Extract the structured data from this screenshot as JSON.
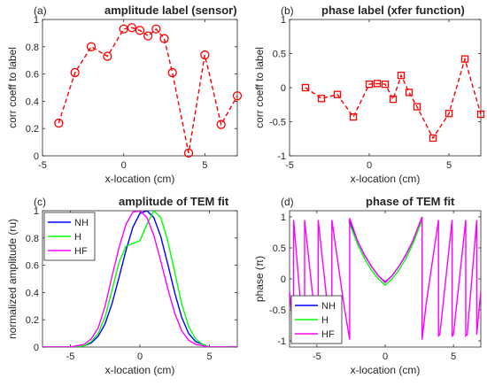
{
  "chart_data": [
    {
      "panel": "a",
      "type": "line",
      "panel_label": "(a)",
      "title": "amplitude label (sensor)",
      "xlabel": "x-location (cm)",
      "ylabel": "corr coeff to label",
      "xlim": [
        -5,
        7
      ],
      "ylim": [
        0,
        1
      ],
      "xticks": [
        "-5",
        "0",
        "5"
      ],
      "yticks": [
        "0",
        "0.2",
        "0.4",
        "0.6",
        "0.8",
        "1"
      ],
      "grid": false,
      "marker": "circle",
      "line_style": "dashed",
      "color": "#ff0000",
      "x": [
        -4,
        -3,
        -2,
        -1,
        0,
        0.5,
        1,
        1.5,
        2,
        2.5,
        3,
        4,
        5,
        6,
        7
      ],
      "y": [
        0.24,
        0.61,
        0.8,
        0.73,
        0.93,
        0.94,
        0.92,
        0.88,
        0.93,
        0.86,
        0.61,
        0.02,
        0.74,
        0.23,
        0.44
      ]
    },
    {
      "panel": "b",
      "type": "line",
      "panel_label": "(b)",
      "title": "phase label (xfer function)",
      "xlabel": "x-location (cm)",
      "ylabel": "corr coeff to label",
      "xlim": [
        -5,
        7
      ],
      "ylim": [
        -1,
        1
      ],
      "xticks": [
        "-5",
        "0",
        "5"
      ],
      "yticks": [
        "-1",
        "-0.5",
        "0",
        "0.5",
        "1"
      ],
      "grid": false,
      "marker": "square",
      "line_style": "dashed",
      "color": "#ff0000",
      "x": [
        -4,
        -3,
        -2,
        -1,
        0,
        0.5,
        1,
        1.5,
        2,
        2.5,
        3,
        4,
        5,
        6,
        7
      ],
      "y": [
        0.0,
        -0.16,
        -0.1,
        -0.43,
        0.05,
        0.06,
        0.05,
        -0.17,
        0.18,
        -0.07,
        -0.28,
        -0.74,
        -0.38,
        0.42,
        -0.39
      ]
    },
    {
      "panel": "c",
      "type": "line",
      "panel_label": "(c)",
      "title": "amplitude of TEM fit",
      "xlabel": "x-location (cm)",
      "ylabel": "normalized amplitude (ru)",
      "xlim": [
        -7,
        7
      ],
      "ylim": [
        0,
        1
      ],
      "xticks": [
        "-5",
        "0",
        "5"
      ],
      "yticks": [
        "0",
        "0.2",
        "0.4",
        "0.6",
        "0.8",
        "1"
      ],
      "grid": false,
      "legend_position": "top-left",
      "series": [
        {
          "name": "NH",
          "color": "#0000ff",
          "x": [
            -7,
            -6,
            -5,
            -4.5,
            -4,
            -3.5,
            -3,
            -2.5,
            -2,
            -1.5,
            -1,
            -0.5,
            0,
            0.5,
            1,
            1.5,
            2,
            2.5,
            3,
            3.5,
            4,
            5,
            6,
            7
          ],
          "y": [
            0,
            0,
            0,
            0,
            0.01,
            0.03,
            0.08,
            0.17,
            0.32,
            0.51,
            0.71,
            0.88,
            0.98,
            1.0,
            0.95,
            0.81,
            0.61,
            0.4,
            0.22,
            0.1,
            0.04,
            0,
            0,
            0
          ]
        },
        {
          "name": "H",
          "color": "#00ff00",
          "x": [
            -7,
            -6,
            -5,
            -4.5,
            -4,
            -3.5,
            -3,
            -2.5,
            -2,
            -1.5,
            -1,
            -0.5,
            0,
            0.5,
            1,
            1.5,
            2,
            2.5,
            3,
            3.5,
            4,
            4.5,
            5,
            6,
            7
          ],
          "y": [
            0,
            0,
            0,
            0,
            0.01,
            0.04,
            0.1,
            0.22,
            0.42,
            0.62,
            0.74,
            0.76,
            0.78,
            0.9,
            1.0,
            0.95,
            0.78,
            0.55,
            0.32,
            0.15,
            0.06,
            0.02,
            0,
            0,
            0
          ]
        },
        {
          "name": "HF",
          "color": "#ff00ff",
          "x": [
            -7,
            -6,
            -5,
            -4.5,
            -4,
            -3.5,
            -3,
            -2.5,
            -2,
            -1.5,
            -1,
            -0.5,
            0,
            0.5,
            1,
            1.5,
            2,
            2.5,
            3,
            3.5,
            4,
            5,
            6,
            7
          ],
          "y": [
            0,
            0,
            0,
            0.01,
            0.02,
            0.06,
            0.14,
            0.3,
            0.52,
            0.73,
            0.9,
            0.99,
            1.0,
            0.95,
            0.82,
            0.63,
            0.43,
            0.25,
            0.12,
            0.05,
            0.02,
            0,
            0,
            0
          ]
        }
      ]
    },
    {
      "panel": "d",
      "type": "line",
      "panel_label": "(d)",
      "title": "phase of TEM fit",
      "xlabel": "x-location (cm)",
      "ylabel": "phase (π)",
      "xlim": [
        -7,
        7
      ],
      "ylim": [
        -1.1,
        1.1
      ],
      "xticks": [
        "-5",
        "0",
        "5"
      ],
      "yticks": [
        "-1",
        "-0.5",
        "0",
        "0.5",
        "1"
      ],
      "grid": false,
      "legend_position": "bottom-left",
      "series": [
        {
          "name": "NH",
          "color": "#0000ff",
          "x": [
            -2.65,
            -2.0,
            -1.5,
            -1.0,
            -0.5,
            0,
            0.5,
            1.0,
            1.5,
            2.0,
            2.7
          ],
          "y": [
            0.95,
            0.6,
            0.38,
            0.2,
            0.05,
            -0.05,
            0.05,
            0.2,
            0.38,
            0.6,
            1.0
          ]
        },
        {
          "name": "H",
          "color": "#00ff00",
          "x": [
            -2.65,
            -2.0,
            -1.5,
            -1.0,
            -0.5,
            0,
            0.5,
            1.0,
            1.5,
            2.0,
            2.7
          ],
          "y": [
            0.92,
            0.55,
            0.32,
            0.14,
            0.0,
            -0.1,
            0.0,
            0.14,
            0.32,
            0.55,
            0.95
          ]
        },
        {
          "name": "HF",
          "color": "#ff00ff",
          "x": [
            -7,
            -6.7,
            -6.7,
            -6.0,
            -5.9,
            -5.9,
            -5.0,
            -4.9,
            -4.9,
            -4.0,
            -3.9,
            -3.9,
            -3.0,
            -2.6,
            -2.6,
            -2.0,
            -1.5,
            -1.0,
            -0.5,
            0,
            0.5,
            1.0,
            1.5,
            2.0,
            2.7,
            2.7,
            3.0,
            3.9,
            3.9,
            4.0,
            4.9,
            4.9,
            5.0,
            5.9,
            5.9,
            6.0,
            6.7,
            6.7,
            7.0
          ],
          "y": [
            -0.2,
            -0.9,
            0.95,
            -0.9,
            -0.92,
            0.95,
            -0.9,
            -0.92,
            0.95,
            -0.9,
            -0.92,
            0.95,
            -0.45,
            -0.98,
            0.98,
            0.6,
            0.38,
            0.2,
            0.05,
            -0.06,
            0.05,
            0.2,
            0.38,
            0.6,
            1.0,
            -0.98,
            -0.4,
            0.95,
            -0.92,
            -0.9,
            0.95,
            -0.92,
            -0.9,
            0.95,
            -0.92,
            -0.9,
            0.95,
            -0.9,
            -0.2
          ]
        }
      ]
    }
  ]
}
